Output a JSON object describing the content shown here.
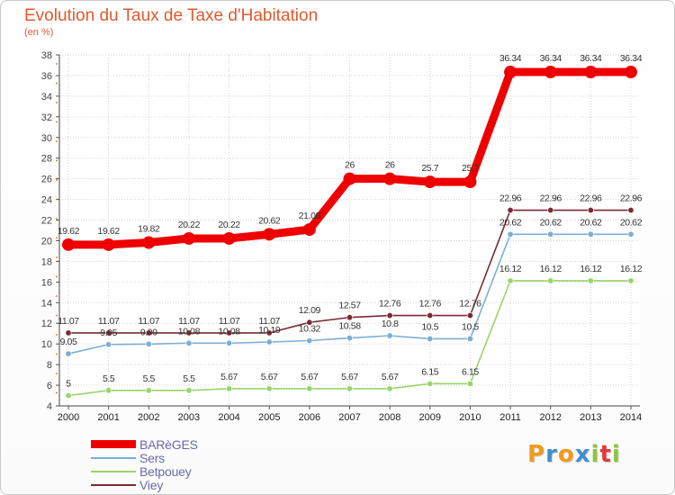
{
  "page": {
    "title": "Evolution du Taux de Taxe d'Habitation",
    "subtitle": "(en %)"
  },
  "logo": {
    "letters": [
      "P",
      "r",
      "o",
      "x",
      "i",
      "t",
      "i"
    ],
    "colors": [
      "#f29a1e",
      "#3f8fd1",
      "#f29a1e",
      "#3f8fd1",
      "#8cc63f",
      "#e2393d",
      "#8cc63f"
    ]
  },
  "chart_data": {
    "type": "line",
    "title": "Evolution du Taux de Taxe d'Habitation",
    "subtitle": "(en %)",
    "xlabel": "",
    "ylabel": "",
    "x": [
      "2000",
      "2001",
      "2002",
      "2003",
      "2004",
      "2005",
      "2006",
      "2007",
      "2008",
      "2009",
      "2010",
      "2011",
      "2012",
      "2013",
      "2014"
    ],
    "ylim": [
      4,
      38
    ],
    "yticks": [
      4,
      6,
      8,
      10,
      12,
      14,
      16,
      18,
      20,
      22,
      24,
      26,
      28,
      30,
      32,
      34,
      36,
      38
    ],
    "grid": true,
    "legend_position": "bottom-left",
    "series": [
      {
        "name": "BARèGES",
        "color": "#ee0000",
        "values": [
          19.62,
          19.62,
          19.82,
          20.22,
          20.22,
          20.62,
          21.08,
          26,
          26,
          25.7,
          25.7,
          36.34,
          36.34,
          36.34,
          36.34
        ],
        "labels": [
          "19.62",
          "19.62",
          "19.82",
          "20.22",
          "20.22",
          "20.62",
          "21.08",
          "26",
          "26",
          "25.7",
          "25.7",
          "36.34",
          "36.34",
          "36.34",
          "36.34"
        ]
      },
      {
        "name": "Sers",
        "color": "#7aaed6",
        "values": [
          9.05,
          9.95,
          9.99,
          10.08,
          10.08,
          10.19,
          10.32,
          10.58,
          10.8,
          10.5,
          10.5,
          20.62,
          20.62,
          20.62,
          20.62
        ],
        "labels": [
          "9.05",
          "9.95",
          "9.99",
          "10.08",
          "10.08",
          "10.19",
          "10.32",
          "10.58",
          "10.8",
          "10.5",
          "10.5",
          "20.62",
          "20.62",
          "20.62",
          "20.62"
        ]
      },
      {
        "name": "Betpouey",
        "color": "#9ad46a",
        "values": [
          5,
          5.5,
          5.5,
          5.5,
          5.67,
          5.67,
          5.67,
          5.67,
          5.67,
          6.15,
          6.15,
          16.12,
          16.12,
          16.12,
          16.12
        ],
        "labels": [
          "5",
          "5.5",
          "5.5",
          "5.5",
          "5.67",
          "5.67",
          "5.67",
          "5.67",
          "5.67",
          "6.15",
          "6.15",
          "16.12",
          "16.12",
          "16.12",
          "16.12"
        ]
      },
      {
        "name": "Viey",
        "color": "#7a2a36",
        "values": [
          11.07,
          11.07,
          11.07,
          11.07,
          11.07,
          11.07,
          12.09,
          12.57,
          12.76,
          12.76,
          12.76,
          22.96,
          22.96,
          22.96,
          22.96
        ],
        "labels": [
          "11.07",
          "11.07",
          "11.07",
          "11.07",
          "11.07",
          "11.07",
          "12.09",
          "12.57",
          "12.76",
          "12.76",
          "12.76",
          "22.96",
          "22.96",
          "22.96",
          "22.96"
        ]
      }
    ]
  }
}
